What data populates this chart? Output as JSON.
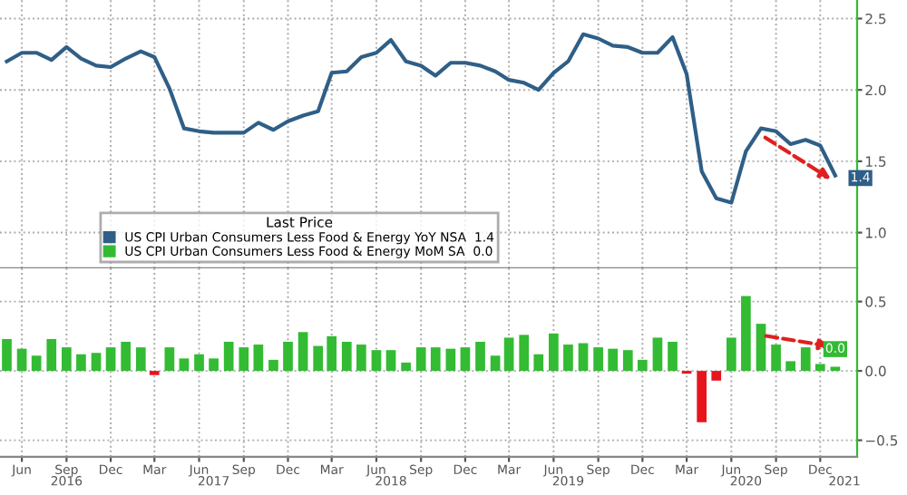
{
  "chart_data": [
    {
      "type": "line",
      "x": [
        "2016-05",
        "2016-06",
        "2016-07",
        "2016-08",
        "2016-09",
        "2016-10",
        "2016-11",
        "2016-12",
        "2017-01",
        "2017-02",
        "2017-03",
        "2017-04",
        "2017-05",
        "2017-06",
        "2017-07",
        "2017-08",
        "2017-09",
        "2017-10",
        "2017-11",
        "2017-12",
        "2018-01",
        "2018-02",
        "2018-03",
        "2018-04",
        "2018-05",
        "2018-06",
        "2018-07",
        "2018-08",
        "2018-09",
        "2018-10",
        "2018-11",
        "2018-12",
        "2019-01",
        "2019-02",
        "2019-03",
        "2019-04",
        "2019-05",
        "2019-06",
        "2019-07",
        "2019-08",
        "2019-09",
        "2019-10",
        "2019-11",
        "2019-12",
        "2020-01",
        "2020-02",
        "2020-03",
        "2020-04",
        "2020-05",
        "2020-06",
        "2020-07",
        "2020-08",
        "2020-09",
        "2020-10",
        "2020-11",
        "2020-12",
        "2021-01"
      ],
      "series": [
        {
          "name": "US CPI Urban Consumers Less Food & Energy YoY NSA  1.4",
          "color": "#2f5f87",
          "values": [
            2.2,
            2.26,
            2.26,
            2.21,
            2.3,
            2.22,
            2.17,
            2.16,
            2.22,
            2.27,
            2.23,
            2.01,
            1.73,
            1.71,
            1.7,
            1.7,
            1.7,
            1.77,
            1.72,
            1.78,
            1.82,
            1.85,
            2.12,
            2.13,
            2.23,
            2.26,
            2.35,
            2.2,
            2.17,
            2.1,
            2.19,
            2.19,
            2.17,
            2.13,
            2.07,
            2.05,
            2.0,
            2.12,
            2.2,
            2.39,
            2.36,
            2.31,
            2.3,
            2.26,
            2.26,
            2.37,
            2.11,
            1.43,
            1.24,
            1.21,
            1.57,
            1.73,
            1.71,
            1.62,
            1.65,
            1.61,
            1.4
          ],
          "value_labels": [
            null,
            null,
            null,
            null,
            null,
            null,
            null,
            null,
            null,
            null,
            null,
            null,
            null,
            null,
            null,
            null,
            null,
            null,
            null,
            null,
            null,
            null,
            null,
            null,
            null,
            null,
            null,
            null,
            null,
            null,
            null,
            null,
            null,
            null,
            null,
            null,
            null,
            null,
            null,
            null,
            null,
            null,
            null,
            null,
            null,
            null,
            null,
            null,
            null,
            null,
            null,
            null,
            null,
            null,
            null,
            null,
            "1.4"
          ]
        }
      ],
      "xlim": [
        "2016-04-17",
        "2021-02-15"
      ],
      "ylim": [
        0.75,
        2.63
      ],
      "yticks": [
        {
          "value": 1.0,
          "label": "1.0"
        },
        {
          "value": 1.5,
          "label": "1.5"
        },
        {
          "value": 2.0,
          "label": "2.0"
        },
        {
          "value": 2.5,
          "label": "2.5"
        }
      ],
      "tick_labels": "y",
      "grid": true,
      "legend": "bottom left",
      "legend_title": "Last Price",
      "line_style": "solid",
      "marker": "none"
    },
    {
      "type": "bar",
      "x": [
        "2016-05",
        "2016-06",
        "2016-07",
        "2016-08",
        "2016-09",
        "2016-10",
        "2016-11",
        "2016-12",
        "2017-01",
        "2017-02",
        "2017-03",
        "2017-04",
        "2017-05",
        "2017-06",
        "2017-07",
        "2017-08",
        "2017-09",
        "2017-10",
        "2017-11",
        "2017-12",
        "2018-01",
        "2018-02",
        "2018-03",
        "2018-04",
        "2018-05",
        "2018-06",
        "2018-07",
        "2018-08",
        "2018-09",
        "2018-10",
        "2018-11",
        "2018-12",
        "2019-01",
        "2019-02",
        "2019-03",
        "2019-04",
        "2019-05",
        "2019-06",
        "2019-07",
        "2019-08",
        "2019-09",
        "2019-10",
        "2019-11",
        "2019-12",
        "2020-01",
        "2020-02",
        "2020-03",
        "2020-04",
        "2020-05",
        "2020-06",
        "2020-07",
        "2020-08",
        "2020-09",
        "2020-10",
        "2020-11",
        "2020-12",
        "2021-01"
      ],
      "series": [
        {
          "name": "US CPI Urban Consumers Less Food & Energy MoM SA  0.0",
          "color": "#33bb33",
          "values": [
            0.23,
            0.16,
            0.11,
            0.23,
            0.17,
            0.12,
            0.13,
            0.17,
            0.21,
            0.17,
            -0.03,
            0.17,
            0.09,
            0.12,
            0.09,
            0.21,
            0.17,
            0.19,
            0.08,
            0.21,
            0.28,
            0.18,
            0.25,
            0.21,
            0.19,
            0.15,
            0.15,
            0.06,
            0.17,
            0.17,
            0.16,
            0.17,
            0.21,
            0.11,
            0.24,
            0.26,
            0.12,
            0.27,
            0.19,
            0.2,
            0.17,
            0.16,
            0.15,
            0.08,
            0.24,
            0.21,
            -0.02,
            -0.37,
            -0.07,
            0.24,
            0.54,
            0.34,
            0.19,
            0.07,
            0.17,
            0.05,
            0.03
          ],
          "colors": [
            "#33bb33",
            "#33bb33",
            "#33bb33",
            "#33bb33",
            "#33bb33",
            "#33bb33",
            "#33bb33",
            "#33bb33",
            "#33bb33",
            "#33bb33",
            "#e8141c",
            "#33bb33",
            "#33bb33",
            "#33bb33",
            "#33bb33",
            "#33bb33",
            "#33bb33",
            "#33bb33",
            "#33bb33",
            "#33bb33",
            "#33bb33",
            "#33bb33",
            "#33bb33",
            "#33bb33",
            "#33bb33",
            "#33bb33",
            "#33bb33",
            "#33bb33",
            "#33bb33",
            "#33bb33",
            "#33bb33",
            "#33bb33",
            "#33bb33",
            "#33bb33",
            "#33bb33",
            "#33bb33",
            "#33bb33",
            "#33bb33",
            "#33bb33",
            "#33bb33",
            "#33bb33",
            "#33bb33",
            "#33bb33",
            "#33bb33",
            "#33bb33",
            "#33bb33",
            "#e8141c",
            "#e8141c",
            "#e8141c",
            "#33bb33",
            "#33bb33",
            "#33bb33",
            "#33bb33",
            "#33bb33",
            "#33bb33",
            "#33bb33",
            "#33bb33"
          ],
          "value_labels": [
            null,
            null,
            null,
            null,
            null,
            null,
            null,
            null,
            null,
            null,
            null,
            null,
            null,
            null,
            null,
            null,
            null,
            null,
            null,
            null,
            null,
            null,
            null,
            null,
            null,
            null,
            null,
            null,
            null,
            null,
            null,
            null,
            null,
            null,
            null,
            null,
            null,
            null,
            null,
            null,
            null,
            null,
            null,
            null,
            null,
            null,
            null,
            null,
            null,
            null,
            null,
            null,
            null,
            null,
            null,
            null,
            "0.0"
          ]
        }
      ],
      "xlim": [
        "2016-04-17",
        "2021-02-15"
      ],
      "ylim": [
        -0.62,
        0.74
      ],
      "yticks": [
        {
          "value": -0.5,
          "label": "−0.5"
        },
        {
          "value": 0.0,
          "label": "0.0"
        },
        {
          "value": 0.5,
          "label": "0.5"
        }
      ],
      "xticks": [
        {
          "value": "2016-06-01",
          "label": "Jun"
        },
        {
          "value": "2016-09-01",
          "label": "Sep"
        },
        {
          "value": "2016-12-01",
          "label": "Dec"
        },
        {
          "value": "2017-03-01",
          "label": "Mar"
        },
        {
          "value": "2017-06-01",
          "label": "Jun"
        },
        {
          "value": "2017-09-01",
          "label": "Sep"
        },
        {
          "value": "2017-12-01",
          "label": "Dec"
        },
        {
          "value": "2018-03-01",
          "label": "Mar"
        },
        {
          "value": "2018-06-01",
          "label": "Jun"
        },
        {
          "value": "2018-09-01",
          "label": "Sep"
        },
        {
          "value": "2018-12-01",
          "label": "Dec"
        },
        {
          "value": "2019-03-01",
          "label": "Mar"
        },
        {
          "value": "2019-06-01",
          "label": "Jun"
        },
        {
          "value": "2019-09-01",
          "label": "Sep"
        },
        {
          "value": "2019-12-01",
          "label": "Dec"
        },
        {
          "value": "2020-03-01",
          "label": "Mar"
        },
        {
          "value": "2020-06-01",
          "label": "Jun"
        },
        {
          "value": "2020-09-01",
          "label": "Sep"
        },
        {
          "value": "2020-12-01",
          "label": "Dec"
        }
      ],
      "x2lim": [
        "2016-04-17",
        "2021-02-15"
      ],
      "x2ticks": [
        {
          "value": "2016-09-01",
          "label": "2016"
        },
        {
          "value": "2017-07-01",
          "label": "2017"
        },
        {
          "value": "2018-07-01",
          "label": "2018"
        },
        {
          "value": "2019-07-01",
          "label": "2019"
        },
        {
          "value": "2020-07-01",
          "label": "2020"
        },
        {
          "value": "2021-01-20",
          "label": "2021"
        }
      ],
      "grid": true
    }
  ]
}
